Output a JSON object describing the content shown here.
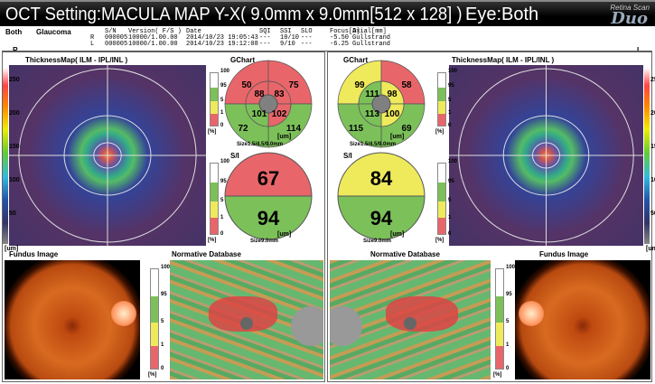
{
  "header": {
    "title": "OCT Setting:MACULA MAP Y-X( 9.0mm x 9.0mm[512 x 128] )",
    "eye": "Eye:Both",
    "logo_small": "Retina Scan",
    "logo_big": "Duo"
  },
  "info": {
    "eye": "Both",
    "diagnosis": "Glaucoma",
    "columns": [
      "S/N",
      "Version( F/S )",
      "Date",
      "SQI",
      "SSI",
      "SLO",
      "Focus[D]",
      "Axial[mm]"
    ],
    "rows": [
      [
        "R",
        "000005",
        "10000/1.00.00",
        "2014/10/23 19:05:43",
        "---",
        "10/10",
        "---",
        "-5.50",
        "Gullstrand"
      ],
      [
        "L",
        "000005",
        "10000/1.00.00",
        "2014/10/23 19:12:08",
        "---",
        "9/10",
        "---",
        "-6.25",
        "Gullstrand"
      ]
    ]
  },
  "side_r": "R",
  "side_l": "L",
  "colors": {
    "red": "#e8666a",
    "yellow": "#eeea5c",
    "green": "#7cc05a",
    "white": "#ffffff",
    "gray": "#808080"
  },
  "thickness_scale": {
    "ticks": [
      "250",
      "200",
      "150",
      "100",
      "50"
    ],
    "unit": "[um]"
  },
  "pct_scale": {
    "ticks": [
      "100",
      "95",
      "5",
      "1",
      "0"
    ],
    "unit": "[%]"
  },
  "right_eye": {
    "thickness_title": "ThicknessMap( ILM - IPL/INL )",
    "gchart_title": "GChart",
    "gchart_unit": "[um]",
    "gchart_size": "Size1.5/4.5/9.0mm",
    "gchart": {
      "outer": [
        {
          "v": "50",
          "c": "red"
        },
        {
          "v": "75",
          "c": "red"
        },
        {
          "v": "114",
          "c": "green"
        },
        {
          "v": "72",
          "c": "green"
        }
      ],
      "inner": [
        {
          "v": "88",
          "c": "red"
        },
        {
          "v": "83",
          "c": "red"
        },
        {
          "v": "102",
          "c": "red"
        },
        {
          "v": "101",
          "c": "green"
        }
      ]
    },
    "si_title": "S/I",
    "si": {
      "superior": {
        "v": "67",
        "c": "red"
      },
      "inferior": {
        "v": "94",
        "c": "green"
      }
    },
    "si_unit": "[um]",
    "si_size": "Size9.0mm",
    "fundus_title": "Fundus Image",
    "normative_title": "Normative Database"
  },
  "left_eye": {
    "thickness_title": "ThicknessMap( ILM - IPL/INL )",
    "gchart_title": "GChart",
    "gchart_unit": "[um]",
    "gchart_size": "Size1.5/4.5/9.0mm",
    "gchart": {
      "outer": [
        {
          "v": "99",
          "c": "yellow"
        },
        {
          "v": "58",
          "c": "red"
        },
        {
          "v": "69",
          "c": "green"
        },
        {
          "v": "115",
          "c": "green"
        }
      ],
      "inner": [
        {
          "v": "111",
          "c": "green"
        },
        {
          "v": "98",
          "c": "yellow"
        },
        {
          "v": "100",
          "c": "yellow"
        },
        {
          "v": "113",
          "c": "green"
        }
      ]
    },
    "si_title": "S/I",
    "si": {
      "superior": {
        "v": "84",
        "c": "yellow"
      },
      "inferior": {
        "v": "94",
        "c": "green"
      }
    },
    "si_unit": "[um]",
    "si_size": "Size9.0mm",
    "fundus_title": "Fundus Image",
    "normative_title": "Normative Database"
  }
}
